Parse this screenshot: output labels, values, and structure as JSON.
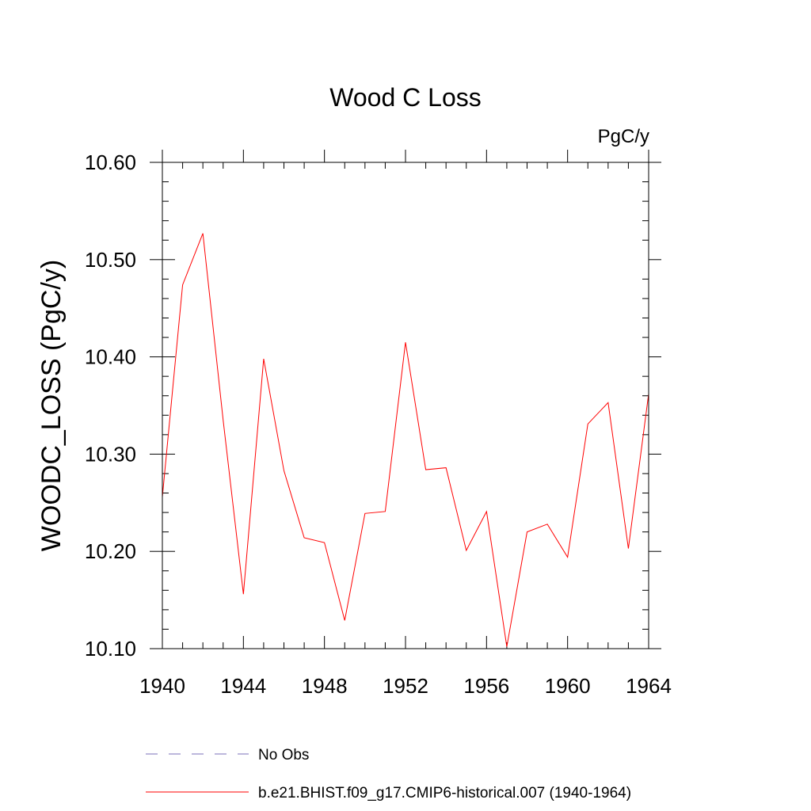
{
  "chart_data": {
    "type": "line",
    "title": "Wood C Loss",
    "units_label": "PgC/y",
    "ylabel": "WOODC_LOSS  (PgC/y)",
    "xlabel": "",
    "xlim": [
      1940,
      1964
    ],
    "ylim": [
      10.1,
      10.6
    ],
    "x_ticks": [
      1940,
      1944,
      1948,
      1952,
      1956,
      1960,
      1964
    ],
    "x_tick_labels": [
      "1940",
      "1944",
      "1948",
      "1952",
      "1956",
      "1960",
      "1964"
    ],
    "y_ticks": [
      10.1,
      10.2,
      10.3,
      10.4,
      10.5,
      10.6
    ],
    "y_tick_labels": [
      "10.10",
      "10.20",
      "10.30",
      "10.40",
      "10.50",
      "10.60"
    ],
    "x_minor_step": 1,
    "y_minor_step": 0.02,
    "legend_position": "bottom",
    "series": [
      {
        "name": "b.e21.BHIST.f09_g17.CMIP6-historical.007 (1940-1964)",
        "color": "#ff0000",
        "style": "solid",
        "x": [
          1940,
          1941,
          1942,
          1943,
          1944,
          1945,
          1946,
          1947,
          1948,
          1949,
          1950,
          1951,
          1952,
          1953,
          1954,
          1955,
          1956,
          1957,
          1958,
          1959,
          1960,
          1961,
          1962,
          1963,
          1964
        ],
        "values": [
          10.256,
          10.474,
          10.527,
          10.335,
          10.156,
          10.398,
          10.283,
          10.214,
          10.209,
          10.129,
          10.239,
          10.241,
          10.415,
          10.284,
          10.286,
          10.201,
          10.241,
          10.102,
          10.22,
          10.228,
          10.194,
          10.331,
          10.353,
          10.203,
          10.362
        ]
      }
    ],
    "legend": [
      {
        "label": "No Obs",
        "color": "#7b6fb8",
        "style": "dashed"
      },
      {
        "label": "b.e21.BHIST.f09_g17.CMIP6-historical.007 (1940-1964)",
        "color": "#ff0000",
        "style": "solid"
      }
    ]
  }
}
